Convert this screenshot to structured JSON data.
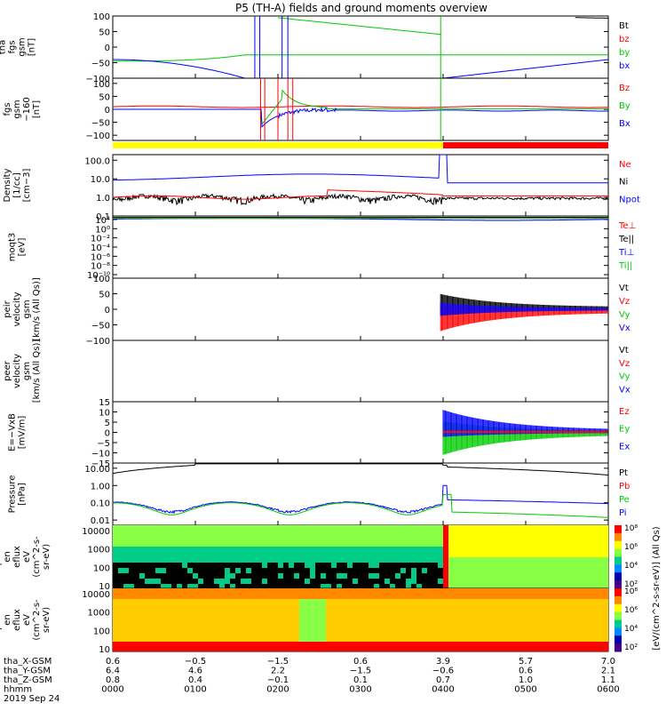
{
  "title": "P5 (TH-A) fields and ground moments overview",
  "colors": {
    "black": "#000000",
    "red": "#ff0000",
    "green": "#00cc00",
    "blue": "#0000ff",
    "yellow": "#ffff00"
  },
  "chart_data": {
    "type": "line",
    "x_range_utc": [
      "2019-09-24 00:00",
      "2019-09-24 06:00"
    ],
    "panels": [
      {
        "ylabel": [
          "tha",
          "fgs",
          "gsm",
          "[nT]"
        ],
        "ylim": [
          -100,
          100
        ],
        "yticks": [
          "100",
          "50",
          "0",
          "−50",
          "−100"
        ],
        "legend": [
          "Bt",
          "bz",
          "by",
          "bx"
        ],
        "legend_colors": [
          "black",
          "red",
          "green",
          "blue"
        ]
      },
      {
        "ylabel": [
          "tha",
          "fgs",
          "gsm",
          "−160",
          "[nT]"
        ],
        "ylim": [
          -120,
          120
        ],
        "yticks": [
          "100",
          "50",
          "0",
          "−50",
          "−100"
        ],
        "legend": [
          "Bz",
          "By",
          "Bx"
        ],
        "legend_colors": [
          "red",
          "green",
          "blue"
        ]
      },
      {
        "ylabel": [
          "Density",
          "[1/cc]",
          "[cm−3]"
        ],
        "scale": "log",
        "ylim": [
          0.1,
          200
        ],
        "yticks": [
          "100.0",
          "10.0",
          "1.0",
          "0.1"
        ],
        "legend": [
          "Ne",
          "Ni",
          "Npot"
        ],
        "legend_colors": [
          "red",
          "black",
          "blue"
        ]
      },
      {
        "ylabel": [
          "moqt3",
          "[eV]"
        ],
        "scale": "log",
        "ylim": [
          1e-10,
          10000.0
        ],
        "yticks": [
          "10⁴",
          "10⁰",
          "10⁻²",
          "10⁻⁴",
          "10⁻⁶",
          "10⁻⁸",
          "10⁻¹⁰"
        ],
        "legend": [
          "Te⊥",
          "Te||",
          "Ti⊥",
          "Ti||"
        ],
        "legend_colors": [
          "red",
          "black",
          "blue",
          "green"
        ]
      },
      {
        "ylabel": [
          "tha",
          "peir",
          "velocity",
          "gsm",
          "[km/s (All Qs)]"
        ],
        "ylim": [
          -100,
          100
        ],
        "yticks": [
          "100",
          "50",
          "0",
          "−50",
          "−100"
        ],
        "legend": [
          "Vt",
          "Vz",
          "Vy",
          "Vx"
        ],
        "legend_colors": [
          "black",
          "red",
          "green",
          "blue"
        ]
      },
      {
        "ylabel": [
          "tha",
          "peer",
          "velocity",
          "gsm",
          "[km/s (All Qs)]"
        ],
        "ylim": [
          -100,
          100
        ],
        "yticks": [],
        "legend": [
          "Vt",
          "Vz",
          "Vy",
          "Vx"
        ],
        "legend_colors": [
          "black",
          "red",
          "green",
          "blue"
        ]
      },
      {
        "ylabel": [
          "E=−VxB",
          "[mV/m]"
        ],
        "ylim": [
          -15,
          15
        ],
        "yticks": [
          "15",
          "10",
          "5",
          "0",
          "−5",
          "−10",
          "−15"
        ],
        "legend": [
          "Ez",
          "Ey",
          "Ex"
        ],
        "legend_colors": [
          "red",
          "green",
          "blue"
        ]
      },
      {
        "ylabel": [
          "Pressure",
          "[nPa]"
        ],
        "scale": "log",
        "ylim": [
          0.005,
          20
        ],
        "yticks": [
          "10.00",
          "1.00",
          "0.10",
          "0.01"
        ],
        "legend": [
          "Pt",
          "Pb",
          "Pe",
          "Pi"
        ],
        "legend_colors": [
          "black",
          "red",
          "green",
          "blue"
        ]
      },
      {
        "ylabel": [
          "tha",
          "peir",
          "en",
          "eflux",
          "eV",
          "(cm^2-s-",
          "sr-eV)"
        ],
        "scale": "log",
        "ylim": [
          7,
          20000
        ],
        "yticks": [
          "10000",
          "1000",
          "100",
          "10"
        ],
        "colorbar": [
          "10⁸",
          "10⁶",
          "10⁴",
          "10²"
        ]
      },
      {
        "ylabel": [
          "tha",
          "peer",
          "en",
          "eflux",
          "eV",
          "(cm^2-s-",
          "sr-eV)"
        ],
        "scale": "log",
        "ylim": [
          7,
          20000
        ],
        "yticks": [
          "10000",
          "1000",
          "100",
          "10"
        ],
        "colorbar": [
          "10⁸",
          "10⁶",
          "10⁴",
          "10²"
        ]
      }
    ],
    "colorbar_label": "[eV/(cm^2-s-sr-eV)] (All Qs)",
    "mode_bar": {
      "yellow_until_hhmm": "0400",
      "red_from_hhmm": "0400"
    },
    "x_axis": {
      "row_labels": [
        "tha_X-GSM",
        "tha_Y-GSM",
        "tha_Z-GSM",
        "hhmm",
        "2019 Sep 24"
      ],
      "columns": [
        [
          "0.6",
          "6.4",
          "0.8",
          "0000"
        ],
        [
          "−0.5",
          "4.6",
          "0.4",
          "0100"
        ],
        [
          "−1.5",
          "2.2",
          "−0.1",
          "0200"
        ],
        [
          "0.6",
          "−1.5",
          "0.1",
          "0300"
        ],
        [
          "3.9",
          "−0.6",
          "0.7",
          "0400"
        ],
        [
          "5.7",
          "0.6",
          "1.0",
          "0500"
        ],
        [
          "7.0",
          "2.1",
          "1.1",
          "0600"
        ]
      ]
    }
  }
}
